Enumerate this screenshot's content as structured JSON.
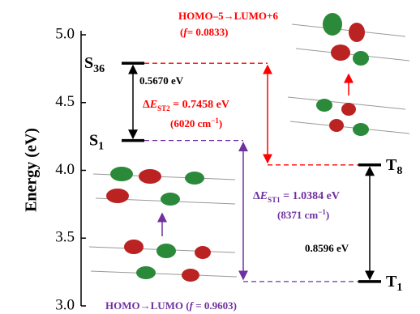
{
  "chart_data": {
    "type": "energy-levels",
    "y_label": "Energy (eV)",
    "ylim": [
      3.0,
      5.0
    ],
    "yticks": [
      {
        "value": 3.0,
        "label": "3.0"
      },
      {
        "value": 3.5,
        "label": "3.5"
      },
      {
        "value": 4.0,
        "label": "4.0"
      },
      {
        "value": 4.5,
        "label": "4.5"
      },
      {
        "value": 5.0,
        "label": "5.0"
      }
    ],
    "levels": [
      {
        "letter": "S",
        "sub": "36",
        "value": 4.79
      },
      {
        "letter": "S",
        "sub": "1",
        "value": 4.22
      },
      {
        "letter": "T",
        "sub": "8",
        "value": 4.04
      },
      {
        "letter": "T",
        "sub": "1",
        "value": 3.18
      }
    ],
    "annotations": [
      {
        "parts": [
          "HOMO–5→LUMO+6"
        ]
      },
      {
        "parts": [
          "(",
          "f",
          "= 0.0833)"
        ]
      },
      {
        "parts": [
          "0.5670 eV"
        ]
      },
      {
        "parts": [
          "Δ",
          "E",
          "ST2",
          " = 0.7458 eV"
        ]
      },
      {
        "parts": [
          "(6020 cm",
          "−1",
          ")"
        ]
      },
      {
        "parts": [
          "Δ",
          "E",
          "ST1",
          " = 1.0384 eV"
        ]
      },
      {
        "parts": [
          "(8371 cm",
          "−1",
          ")"
        ]
      },
      {
        "parts": [
          "0.8596 eV"
        ]
      },
      {
        "parts": [
          "HOMO→LUMO (",
          "f",
          " = 0.9603)"
        ]
      }
    ]
  }
}
